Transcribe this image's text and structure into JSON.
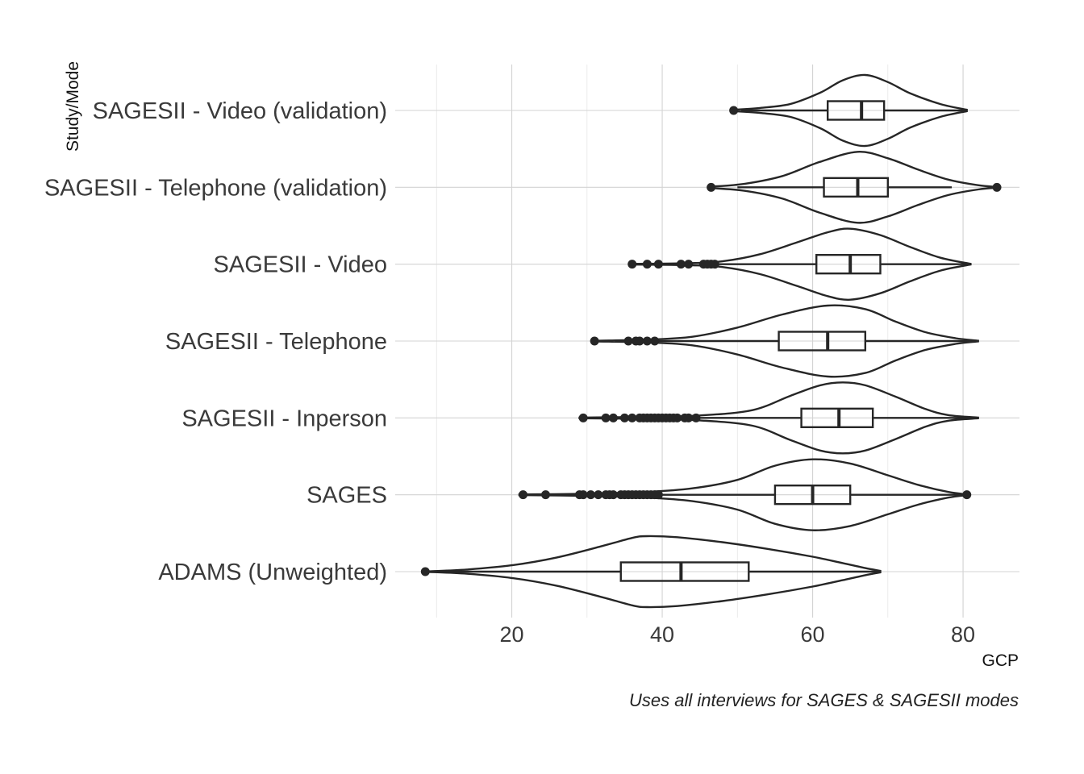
{
  "chart_data": {
    "type": "violin",
    "xlabel": "GCP",
    "ylabel": "Study/Mode",
    "caption": "Uses all interviews for SAGES & SAGESII modes",
    "xlim": [
      4.5,
      87.5
    ],
    "xticks": [
      20,
      40,
      60,
      80
    ],
    "grid": true,
    "legend": "none",
    "line_color": "#262626",
    "categories": [
      "ADAMS (Unweighted)",
      "SAGES",
      "SAGESII - Inperson",
      "SAGESII - Telephone",
      "SAGESII - Video",
      "SAGESII - Telephone (validation)",
      "SAGESII - Video (validation)"
    ],
    "series": [
      {
        "category": "ADAMS (Unweighted)",
        "box": {
          "q1": 34.5,
          "median": 42.5,
          "q3": 51.5,
          "whisker_low": 8.5,
          "whisker_high": 69
        },
        "outliers": [
          8.5
        ],
        "violin": [
          [
            9,
            0.01
          ],
          [
            14,
            0.06
          ],
          [
            20,
            0.18
          ],
          [
            26,
            0.4
          ],
          [
            32,
            0.72
          ],
          [
            36,
            0.95
          ],
          [
            38,
            1.0
          ],
          [
            42,
            0.97
          ],
          [
            48,
            0.83
          ],
          [
            54,
            0.64
          ],
          [
            60,
            0.42
          ],
          [
            64,
            0.24
          ],
          [
            67,
            0.1
          ],
          [
            69,
            0.02
          ]
        ]
      },
      {
        "category": "SAGES",
        "box": {
          "q1": 55,
          "median": 60,
          "q3": 65,
          "whisker_low": 40,
          "whisker_high": 80
        },
        "outliers": [
          21.5,
          24.5,
          29,
          29.5,
          30.5,
          31.5,
          32.5,
          33,
          33.5,
          34.5,
          35,
          35.5,
          36,
          36.5,
          37,
          37.5,
          38,
          38.5,
          39,
          39.5,
          80.5
        ],
        "violin": [
          [
            21,
            0.01
          ],
          [
            30,
            0.03
          ],
          [
            38,
            0.08
          ],
          [
            44,
            0.18
          ],
          [
            50,
            0.42
          ],
          [
            55,
            0.82
          ],
          [
            60,
            1.0
          ],
          [
            65,
            0.88
          ],
          [
            70,
            0.55
          ],
          [
            74,
            0.28
          ],
          [
            78,
            0.08
          ],
          [
            80.5,
            0.01
          ]
        ]
      },
      {
        "category": "SAGESII - Inperson",
        "box": {
          "q1": 58.5,
          "median": 63.5,
          "q3": 68,
          "whisker_low": 44.5,
          "whisker_high": 82
        },
        "outliers": [
          29.5,
          32.5,
          33.5,
          35,
          36,
          37,
          37.5,
          38,
          38.5,
          39,
          39.5,
          40,
          40.5,
          41,
          41.5,
          42,
          43,
          43.5,
          44.5
        ],
        "violin": [
          [
            29,
            0.01
          ],
          [
            38,
            0.03
          ],
          [
            45,
            0.07
          ],
          [
            52,
            0.22
          ],
          [
            57,
            0.62
          ],
          [
            61,
            0.92
          ],
          [
            64,
            1.0
          ],
          [
            67,
            0.92
          ],
          [
            71,
            0.6
          ],
          [
            75,
            0.25
          ],
          [
            78,
            0.08
          ],
          [
            82,
            0.01
          ]
        ]
      },
      {
        "category": "SAGESII - Telephone",
        "box": {
          "q1": 55.5,
          "median": 62,
          "q3": 67,
          "whisker_low": 39,
          "whisker_high": 82
        },
        "outliers": [
          31,
          35.5,
          36.5,
          37,
          38,
          39
        ],
        "violin": [
          [
            31,
            0.01
          ],
          [
            38,
            0.04
          ],
          [
            44,
            0.12
          ],
          [
            50,
            0.38
          ],
          [
            56,
            0.75
          ],
          [
            62,
            1.0
          ],
          [
            67,
            0.9
          ],
          [
            71,
            0.55
          ],
          [
            75,
            0.25
          ],
          [
            79,
            0.08
          ],
          [
            82,
            0.01
          ]
        ]
      },
      {
        "category": "SAGESII - Video",
        "box": {
          "q1": 60.5,
          "median": 65,
          "q3": 69,
          "whisker_low": 47.5,
          "whisker_high": 81
        },
        "outliers": [
          36,
          38,
          39.5,
          42.5,
          43.5,
          45.5,
          46,
          46.5,
          47
        ],
        "violin": [
          [
            36,
            0.01
          ],
          [
            44,
            0.03
          ],
          [
            48,
            0.08
          ],
          [
            53,
            0.28
          ],
          [
            58,
            0.62
          ],
          [
            62,
            0.9
          ],
          [
            65,
            1.0
          ],
          [
            69,
            0.82
          ],
          [
            73,
            0.48
          ],
          [
            77,
            0.18
          ],
          [
            81,
            0.01
          ]
        ]
      },
      {
        "category": "SAGESII - Telephone (validation)",
        "box": {
          "q1": 61.5,
          "median": 66,
          "q3": 70,
          "whisker_low": 50,
          "whisker_high": 78.5
        },
        "outliers": [
          46.5,
          84.5
        ],
        "violin": [
          [
            46.5,
            0.02
          ],
          [
            51,
            0.1
          ],
          [
            56,
            0.32
          ],
          [
            61,
            0.72
          ],
          [
            66,
            1.0
          ],
          [
            70,
            0.82
          ],
          [
            74,
            0.5
          ],
          [
            78,
            0.22
          ],
          [
            82,
            0.06
          ],
          [
            84.5,
            0.01
          ]
        ]
      },
      {
        "category": "SAGESII - Video (validation)",
        "box": {
          "q1": 62,
          "median": 66.5,
          "q3": 69.5,
          "whisker_low": 50.5,
          "whisker_high": 80.5
        },
        "outliers": [
          49.5
        ],
        "violin": [
          [
            49.5,
            0.02
          ],
          [
            53,
            0.07
          ],
          [
            57,
            0.18
          ],
          [
            61,
            0.5
          ],
          [
            64,
            0.85
          ],
          [
            67,
            1.0
          ],
          [
            70,
            0.8
          ],
          [
            73,
            0.48
          ],
          [
            77,
            0.18
          ],
          [
            80.5,
            0.02
          ]
        ]
      }
    ]
  }
}
